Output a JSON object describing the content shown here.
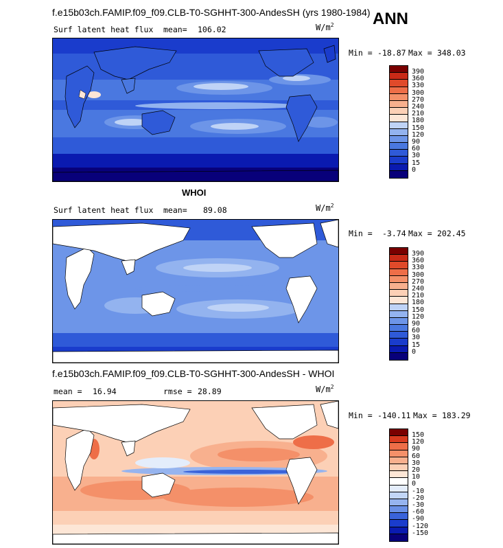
{
  "header": {
    "title": "f.e15b03ch.FAMIP.f09_f09.CLB-T0-SGHHT-300-AndesSH (yrs 1980-1984)",
    "season": "ANN"
  },
  "colors": {
    "land": "#ffffff",
    "coast": "#000000",
    "abs_scale": [
      "#08007a",
      "#0a1ab0",
      "#1a3ccc",
      "#2f5ad8",
      "#4a78e0",
      "#6d95e8",
      "#93b3ef",
      "#bfd3f6",
      "#fde6d6",
      "#fcd0b6",
      "#f8b08e",
      "#f49069",
      "#ee6e48",
      "#e04a2a",
      "#c92a17",
      "#7a0000"
    ],
    "diff_scale": [
      "#08007a",
      "#0a1ab0",
      "#1a3ccc",
      "#3a63da",
      "#6a90e6",
      "#96b4ef",
      "#c2d6f7",
      "#e4edfb",
      "#ffffff",
      "#fde6d6",
      "#fcd0b6",
      "#f8b08e",
      "#f49069",
      "#ee6e48",
      "#d83a1f",
      "#7a0000"
    ]
  },
  "panels": [
    {
      "variable": "Surf latent heat flux",
      "mean_label": "mean=",
      "mean_value": "106.02",
      "units_base": "W/m",
      "units_exp": "2",
      "min_label": "Min =",
      "min_value": "-18.87",
      "max_label": "Max =",
      "max_value": "348.03",
      "levels": [
        "390",
        "360",
        "330",
        "300",
        "270",
        "240",
        "210",
        "180",
        "150",
        "120",
        "90",
        "60",
        "30",
        "15",
        "0"
      ]
    },
    {
      "subtitle": "WHOI",
      "variable": "Surf latent heat flux",
      "mean_label": "mean=",
      "mean_value": "89.08",
      "units_base": "W/m",
      "units_exp": "2",
      "min_label": "Min =",
      "min_value": "-3.74",
      "max_label": "Max =",
      "max_value": "202.45",
      "levels": [
        "390",
        "360",
        "330",
        "300",
        "270",
        "240",
        "210",
        "180",
        "150",
        "120",
        "90",
        "60",
        "30",
        "15",
        "0"
      ]
    },
    {
      "subtitle": "f.e15b03ch.FAMIP.f09_f09.CLB-T0-SGHHT-300-AndesSH - WHOI",
      "mean_label": "mean =",
      "mean_value": "16.94",
      "rmse_label": "rmse =",
      "rmse_value": "28.89",
      "units_base": "W/m",
      "units_exp": "2",
      "min_label": "Min =",
      "min_value": "-140.11",
      "max_label": "Max =",
      "max_value": "183.29",
      "levels": [
        "150",
        "120",
        "90",
        "60",
        "30",
        "20",
        "10",
        "0",
        "-10",
        "-20",
        "-30",
        "-60",
        "-90",
        "-120",
        "-150"
      ]
    }
  ],
  "chart_data": [
    {
      "type": "heatmap",
      "title": "Surf latent heat flux (model, ANN)",
      "units": "W/m2",
      "mean": 106.02,
      "min": -18.87,
      "max": 348.03,
      "contour_levels": [
        0,
        15,
        30,
        60,
        90,
        120,
        150,
        180,
        210,
        240,
        270,
        300,
        330,
        360,
        390
      ]
    },
    {
      "type": "heatmap",
      "title": "Surf latent heat flux (WHOI)",
      "units": "W/m2",
      "mean": 89.08,
      "min": -3.74,
      "max": 202.45,
      "contour_levels": [
        0,
        15,
        30,
        60,
        90,
        120,
        150,
        180,
        210,
        240,
        270,
        300,
        330,
        360,
        390
      ]
    },
    {
      "type": "heatmap",
      "title": "Model - WHOI",
      "units": "W/m2",
      "mean": 16.94,
      "rmse": 28.89,
      "min": -140.11,
      "max": 183.29,
      "contour_levels": [
        -150,
        -120,
        -90,
        -60,
        -30,
        -20,
        -10,
        0,
        10,
        20,
        30,
        60,
        90,
        120,
        150
      ]
    }
  ]
}
